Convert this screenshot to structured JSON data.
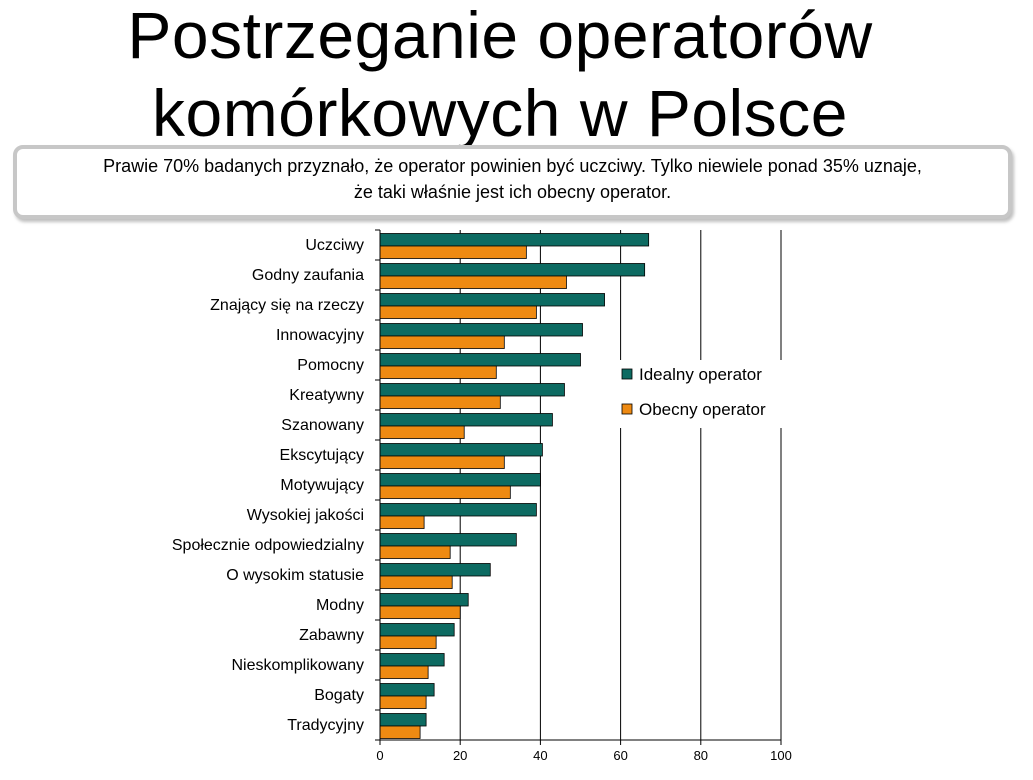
{
  "slide": {
    "title_line1": "Postrzeganie operatorów",
    "title_line2": "komórkowych w Polsce"
  },
  "callout": {
    "line1": "Prawie 70% badanych przyznało,  że operator powinien być uczciwy. Tylko niewiele ponad 35% uznaje,",
    "line2": "że taki właśnie jest ich obecny operator."
  },
  "colors": {
    "ideal": "#0d6b62",
    "current": "#ee8a12",
    "grid": "#000000",
    "callout_border": "#c7c7c7"
  },
  "chart_data": {
    "type": "bar",
    "orientation": "horizontal",
    "categories": [
      "Uczciwy",
      "Godny zaufania",
      "Znający się na rzeczy",
      "Innowacyjny",
      "Pomocny",
      "Kreatywny",
      "Szanowany",
      "Ekscytujący",
      "Motywujący",
      "Wysokiej jakości",
      "Społecznie odpowiedzialny",
      "O wysokim statusie",
      "Modny",
      "Zabawny",
      "Nieskomplikowany",
      "Bogaty",
      "Tradycyjny"
    ],
    "series": [
      {
        "name": "Idealny operator",
        "values": [
          67,
          66,
          56,
          50.5,
          50,
          46,
          43,
          40.5,
          40,
          39,
          34,
          27.5,
          22,
          18.5,
          16,
          13.5,
          11.5
        ]
      },
      {
        "name": "Obecny operator",
        "values": [
          36.5,
          46.5,
          39,
          31,
          29,
          30,
          21,
          31,
          32.5,
          11,
          17.5,
          18,
          20,
          14,
          12,
          11.5,
          10
        ]
      }
    ],
    "xlim": [
      0,
      100
    ],
    "xticks": [
      "0",
      "20",
      "40",
      "60",
      "80",
      "100"
    ],
    "grid": "vertical",
    "legend_position": "right"
  }
}
